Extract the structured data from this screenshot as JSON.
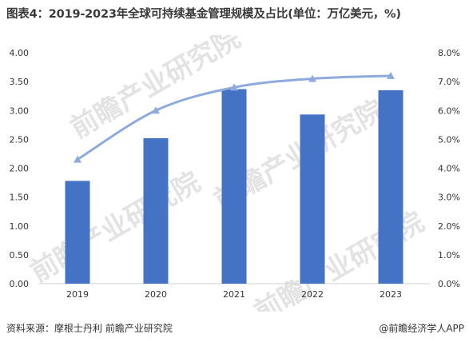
{
  "title": "图表4：2019-2023年全球可持续基金管理规模及占比(单位：万亿美元，%)",
  "source_note": "资料来源：摩根士丹利 前瞻产业研究院",
  "brand_note": "@前瞻经济学人APP",
  "watermark": "前瞻产业研究院",
  "colors": {
    "bar": "#4472C4",
    "line": "#8FAADC",
    "axis": "#d0d0d0"
  },
  "chart_data": {
    "type": "bar",
    "categories": [
      "2019",
      "2020",
      "2021",
      "2022",
      "2023"
    ],
    "series": [
      {
        "kind": "bar",
        "axis": "left",
        "values": [
          1.78,
          2.52,
          3.37,
          2.93,
          3.35
        ]
      },
      {
        "kind": "line",
        "axis": "right",
        "values": [
          4.3,
          6.0,
          6.8,
          7.1,
          7.2
        ]
      }
    ],
    "y_left": {
      "min": 0,
      "max": 4,
      "ticks": [
        "0.00",
        "0.50",
        "1.00",
        "1.50",
        "2.00",
        "2.50",
        "3.00",
        "3.50",
        "4.00"
      ]
    },
    "y_right": {
      "min": 0,
      "max": 8,
      "ticks": [
        "0.0%",
        "1.0%",
        "2.0%",
        "3.0%",
        "4.0%",
        "5.0%",
        "6.0%",
        "7.0%",
        "8.0%"
      ]
    },
    "grid": false,
    "legend": "none"
  }
}
